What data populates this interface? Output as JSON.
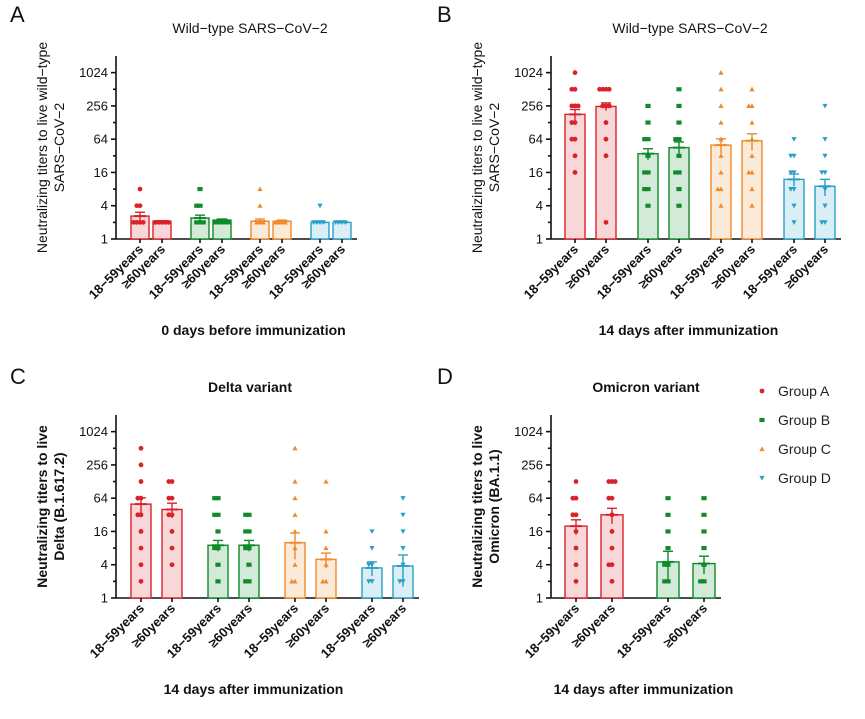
{
  "colors": {
    "Group A": "#d9232b",
    "Group B": "#0f8a2c",
    "Group C": "#ef8a2b",
    "Group D": "#2b9fc6"
  },
  "legend": {
    "position": "right",
    "items": [
      {
        "label": "Group A",
        "marker": "circle"
      },
      {
        "label": "Group B",
        "marker": "square"
      },
      {
        "label": "Group C",
        "marker": "triangle-up"
      },
      {
        "label": "Group D",
        "marker": "triangle-down"
      }
    ]
  },
  "chart_data": [
    {
      "panel": "A",
      "type": "bar",
      "title": "Wild−type SARS−CoV−2",
      "title_bold": false,
      "ylabel": [
        "Neutralizing titers to live wild−type",
        "SARS−CoV−2"
      ],
      "ylabel_bold": false,
      "xlabel": "0 days before immunization",
      "yscale": "log2",
      "ylim": [
        1,
        2048
      ],
      "yticks": [
        1,
        4,
        16,
        64,
        256,
        1024
      ],
      "categories": [
        "18−59years",
        "≥60years",
        "18−59years",
        "≥60years",
        "18−59years",
        "≥60years",
        "18−59years",
        "≥60years"
      ],
      "groups": [
        "Group A",
        "Group A",
        "Group B",
        "Group B",
        "Group C",
        "Group C",
        "Group D",
        "Group D"
      ],
      "values": [
        2.6,
        2.1,
        2.4,
        2.2,
        2.1,
        2.1,
        2.0,
        2.0
      ],
      "error": [
        0.45,
        0.05,
        0.3,
        0.1,
        0.2,
        0.1,
        0.05,
        0.05
      ],
      "points": [
        [
          8,
          4,
          4,
          2,
          2,
          2,
          2
        ],
        [
          2,
          2,
          2,
          2,
          2,
          2
        ],
        [
          8,
          4,
          4,
          2,
          2,
          2
        ],
        [
          2,
          2,
          2,
          2,
          2
        ],
        [
          8,
          4,
          2,
          2,
          2
        ],
        [
          2,
          2,
          2,
          2
        ],
        [
          4,
          2,
          2,
          2,
          2
        ],
        [
          2,
          2,
          2,
          2
        ]
      ]
    },
    {
      "panel": "B",
      "type": "bar",
      "title": "Wild−type SARS−CoV−2",
      "title_bold": false,
      "ylabel": [
        "Neutralizing titers to live wild−type",
        "SARS−CoV−2"
      ],
      "ylabel_bold": false,
      "xlabel": "14 days after immunization",
      "yscale": "log2",
      "ylim": [
        1,
        2048
      ],
      "yticks": [
        1,
        4,
        16,
        64,
        256,
        1024
      ],
      "categories": [
        "18−59years",
        "≥60years",
        "18−59years",
        "≥60years",
        "18−59years",
        "≥60years",
        "18−59years",
        "≥60years"
      ],
      "groups": [
        "Group A",
        "Group A",
        "Group B",
        "Group B",
        "Group C",
        "Group C",
        "Group D",
        "Group D"
      ],
      "values": [
        180,
        250,
        35,
        45,
        50,
        60,
        12,
        9
      ],
      "error": [
        40,
        40,
        8,
        12,
        15,
        20,
        3,
        3
      ],
      "points": [
        [
          1024,
          512,
          512,
          256,
          256,
          256,
          128,
          128,
          64,
          64,
          32,
          16
        ],
        [
          512,
          512,
          512,
          512,
          256,
          256,
          256,
          128,
          64,
          32,
          2
        ],
        [
          256,
          128,
          64,
          64,
          32,
          16,
          16,
          8,
          8,
          4
        ],
        [
          512,
          256,
          128,
          64,
          64,
          32,
          16,
          16,
          8,
          4
        ],
        [
          1024,
          512,
          256,
          128,
          64,
          32,
          16,
          8,
          8,
          4
        ],
        [
          512,
          256,
          256,
          128,
          64,
          32,
          16,
          16,
          8,
          4
        ],
        [
          64,
          32,
          32,
          16,
          16,
          8,
          8,
          4,
          2
        ],
        [
          256,
          64,
          32,
          16,
          16,
          8,
          4,
          2,
          2
        ]
      ]
    },
    {
      "panel": "C",
      "type": "bar",
      "title": "Delta variant",
      "title_bold": true,
      "ylabel": [
        "Neutralizing titers to live",
        "Delta (B.1.617.2)"
      ],
      "ylabel_bold": true,
      "xlabel": "14 days after immunization",
      "yscale": "log2",
      "ylim": [
        1,
        2048
      ],
      "yticks": [
        1,
        4,
        16,
        64,
        256,
        1024
      ],
      "categories": [
        "18−59years",
        "≥60years",
        "18−59years",
        "≥60years",
        "18−59years",
        "≥60years",
        "18−59years",
        "≥60years"
      ],
      "groups": [
        "Group A",
        "Group A",
        "Group B",
        "Group B",
        "Group C",
        "Group C",
        "Group D",
        "Group D"
      ],
      "values": [
        50,
        40,
        9,
        9,
        10,
        5,
        3.5,
        3.8
      ],
      "error": [
        15,
        12,
        2,
        2,
        5,
        1.5,
        1,
        2.2
      ],
      "points": [
        [
          512,
          256,
          128,
          64,
          64,
          32,
          32,
          16,
          8,
          4,
          2
        ],
        [
          128,
          128,
          64,
          64,
          32,
          32,
          16,
          8,
          4
        ],
        [
          64,
          64,
          32,
          32,
          16,
          8,
          8,
          4,
          2
        ],
        [
          32,
          32,
          16,
          16,
          8,
          8,
          4,
          2,
          2
        ],
        [
          512,
          128,
          64,
          32,
          16,
          8,
          4,
          2,
          2
        ],
        [
          128,
          16,
          8,
          4,
          2,
          2
        ],
        [
          16,
          8,
          4,
          4,
          2,
          2
        ],
        [
          64,
          32,
          16,
          8,
          4,
          2,
          2
        ]
      ]
    },
    {
      "panel": "D",
      "type": "bar",
      "title": "Omicron variant",
      "title_bold": true,
      "ylabel": [
        "Neutralizing titers to live",
        "Omicron (BA.1.1)"
      ],
      "ylabel_bold": true,
      "xlabel": "14 days after immunization",
      "yscale": "log2",
      "ylim": [
        1,
        2048
      ],
      "yticks": [
        1,
        4,
        16,
        64,
        256,
        1024
      ],
      "categories": [
        "18−59years",
        "≥60years",
        "18−59years",
        "≥60years"
      ],
      "groups": [
        "Group A",
        "Group A",
        "Group B",
        "Group B"
      ],
      "values": [
        20,
        32,
        4.5,
        4.2
      ],
      "error": [
        6,
        10,
        2.5,
        1.5
      ],
      "points": [
        [
          128,
          64,
          64,
          32,
          32,
          16,
          8,
          4,
          2
        ],
        [
          128,
          128,
          128,
          64,
          64,
          32,
          16,
          8,
          4,
          4,
          2
        ],
        [
          64,
          32,
          16,
          8,
          4,
          4,
          2,
          2
        ],
        [
          64,
          32,
          16,
          8,
          4,
          2,
          2
        ]
      ]
    }
  ]
}
